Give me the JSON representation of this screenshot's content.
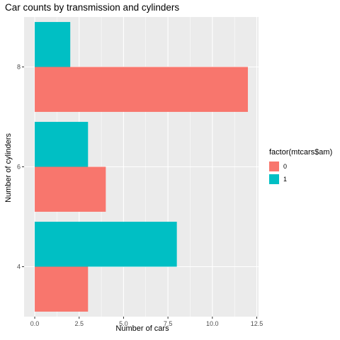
{
  "chart_data": {
    "type": "bar",
    "orientation": "horizontal",
    "title": "Car counts by transmission and cylinders",
    "xlabel": "Number of cars",
    "ylabel": "Number of cylinders",
    "categories": [
      "4",
      "6",
      "8"
    ],
    "series": [
      {
        "name": "0",
        "color": "#F8766D",
        "values": [
          3,
          4,
          12
        ]
      },
      {
        "name": "1",
        "color": "#00BFC4",
        "values": [
          8,
          3,
          2
        ]
      }
    ],
    "xlim": [
      -0.6,
      12.6
    ],
    "xticks": [
      0,
      2.5,
      5,
      7.5,
      10,
      12.5
    ],
    "xtick_labels": [
      "0.0",
      "2.5",
      "5.0",
      "7.5",
      "10.0",
      "12.5"
    ],
    "legend": {
      "title": "factor(mtcars$am)",
      "position": "right"
    },
    "grid": true,
    "panel_background": "#EBEBEB"
  }
}
